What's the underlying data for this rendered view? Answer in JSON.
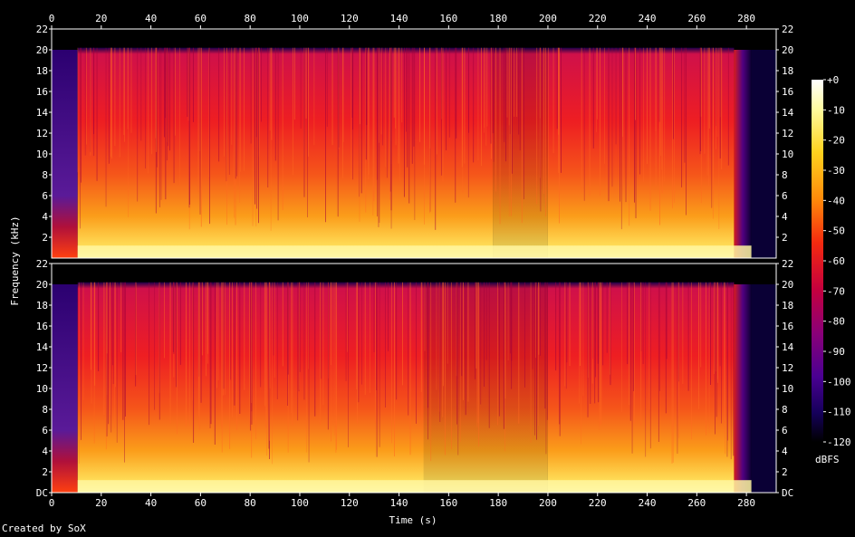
{
  "credit": "Created by SoX",
  "chart_data": {
    "type": "heatmap",
    "title": "",
    "xlabel": "Time (s)",
    "ylabel": "Frequency (kHz)",
    "xlim": [
      0,
      292
    ],
    "ylim": [
      0,
      22
    ],
    "x_ticks": [
      "0",
      "20",
      "40",
      "60",
      "80",
      "100",
      "120",
      "140",
      "160",
      "180",
      "200",
      "220",
      "240",
      "260",
      "280"
    ],
    "y_ticks_top": [
      "22",
      "20",
      "18",
      "16",
      "14",
      "12",
      "10",
      "8",
      "6",
      "4",
      "2"
    ],
    "y_ticks_bottom": [
      "22",
      "20",
      "18",
      "16",
      "14",
      "12",
      "10",
      "8",
      "6",
      "4",
      "2",
      "DC"
    ],
    "colorbar": {
      "label": "dBFS",
      "ticks": [
        "+0",
        "-10",
        "-20",
        "-30",
        "-40",
        "-50",
        "-60",
        "-70",
        "-80",
        "-90",
        "-100",
        "-110",
        "-120"
      ],
      "range": [
        -120,
        0
      ]
    },
    "channels": [
      {
        "segments": [
          {
            "start": 0,
            "end": 10.5,
            "top_khz": 20,
            "level_db": -90
          },
          {
            "start": 10.5,
            "end": 178,
            "top_khz": 20.2,
            "level_db": -60
          },
          {
            "start": 178,
            "end": 200,
            "top_khz": 20.2,
            "level_db": -70
          },
          {
            "start": 200,
            "end": 275,
            "top_khz": 20.2,
            "level_db": -60
          },
          {
            "start": 275,
            "end": 282,
            "top_khz": 20,
            "level_db": -100
          },
          {
            "start": 282,
            "end": 292,
            "top_khz": 20,
            "level_db": -110
          }
        ]
      },
      {
        "segments": [
          {
            "start": 0,
            "end": 10.5,
            "top_khz": 20,
            "level_db": -90
          },
          {
            "start": 10.5,
            "end": 150,
            "top_khz": 20.2,
            "level_db": -60
          },
          {
            "start": 150,
            "end": 200,
            "top_khz": 20.2,
            "level_db": -70
          },
          {
            "start": 200,
            "end": 275,
            "top_khz": 20.2,
            "level_db": -62
          },
          {
            "start": 275,
            "end": 282,
            "top_khz": 20,
            "level_db": -100
          },
          {
            "start": 282,
            "end": 292,
            "top_khz": 20,
            "level_db": -110
          }
        ]
      }
    ]
  }
}
